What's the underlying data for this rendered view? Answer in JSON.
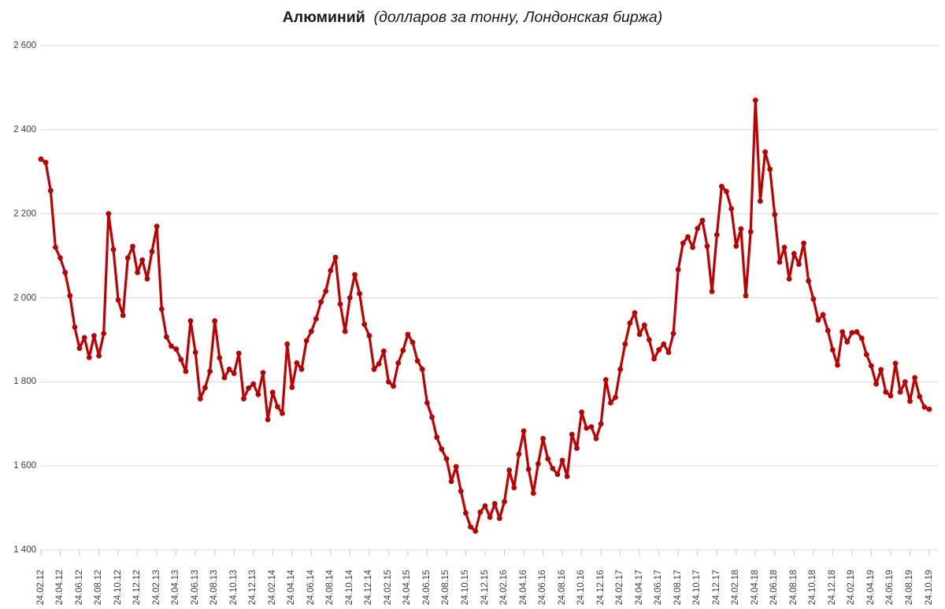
{
  "title": {
    "main": "Алюминий",
    "subtitle": "(долларов за тонну, Лондонская биржа)"
  },
  "colors": {
    "line": "#C00000",
    "marker": "#B40404",
    "gridline": "#D9D9D9",
    "tick": "#C6C6C6",
    "axis_text": "#3F3F3F",
    "title_text": "#1A1A1A",
    "background": "#FFFFFF"
  },
  "chart_data": {
    "type": "line",
    "title": "Алюминий",
    "subtitle": "(долларов за тонну, Лондонская биржа)",
    "series_name": "Алюминий, долларов за тонну",
    "legend": "none",
    "grid": "horizontal",
    "ylim": [
      1400,
      2600
    ],
    "y_ticks": [
      2600,
      2400,
      2200,
      2000,
      1800,
      1600,
      1400
    ],
    "y_tick_labels": [
      "2 600",
      "2 400",
      "2 200",
      "2 000",
      "1 800",
      "1 600",
      "1 400"
    ],
    "x_tick_labels": [
      "24.02.12",
      "24.04.12",
      "24.06.12",
      "24.08.12",
      "24.10.12",
      "24.12.12",
      "24.02.13",
      "24.04.13",
      "24.06.13",
      "24.08.13",
      "24.10.13",
      "24.12.13",
      "24.02.14",
      "24.04.14",
      "24.06.14",
      "24.08.14",
      "24.10.14",
      "24.12.14",
      "24.02.15",
      "24.04.15",
      "24.06.15",
      "24.08.15",
      "24.10.15",
      "24.12.15",
      "24.02.16",
      "24.04.16",
      "24.06.16",
      "24.08.16",
      "24.10.16",
      "24.12.16",
      "24.02.17",
      "24.04.17",
      "24.06.17",
      "24.08.17",
      "24.10.17",
      "24.12.17",
      "24.02.18",
      "24.04.18",
      "24.06.18",
      "24.08.18",
      "24.10.18",
      "24.12.18",
      "24.02.19",
      "24.04.19",
      "24.06.19",
      "24.08.19",
      "24.10.19"
    ],
    "values": [
      2330,
      2322,
      2255,
      2120,
      2095,
      2060,
      2005,
      1930,
      1880,
      1905,
      1858,
      1910,
      1862,
      1915,
      2200,
      2115,
      1995,
      1958,
      2095,
      2122,
      2060,
      2090,
      2045,
      2110,
      2170,
      1973,
      1907,
      1885,
      1878,
      1853,
      1825,
      1945,
      1870,
      1760,
      1786,
      1825,
      1945,
      1857,
      1810,
      1830,
      1820,
      1868,
      1760,
      1785,
      1795,
      1770,
      1822,
      1710,
      1775,
      1741,
      1725,
      1890,
      1787,
      1845,
      1830,
      1898,
      1920,
      1950,
      1990,
      2016,
      2065,
      2096,
      1985,
      1920,
      2000,
      2055,
      2010,
      1937,
      1910,
      1830,
      1843,
      1873,
      1800,
      1790,
      1845,
      1875,
      1913,
      1894,
      1850,
      1830,
      1750,
      1716,
      1668,
      1640,
      1617,
      1563,
      1598,
      1540,
      1488,
      1455,
      1445,
      1490,
      1505,
      1478,
      1510,
      1475,
      1515,
      1590,
      1548,
      1628,
      1683,
      1592,
      1535,
      1605,
      1665,
      1617,
      1594,
      1580,
      1613,
      1575,
      1675,
      1642,
      1728,
      1690,
      1693,
      1665,
      1700,
      1805,
      1750,
      1763,
      1830,
      1890,
      1940,
      1964,
      1913,
      1935,
      1900,
      1855,
      1876,
      1890,
      1870,
      1915,
      2067,
      2130,
      2145,
      2120,
      2165,
      2184,
      2123,
      2015,
      2150,
      2265,
      2253,
      2212,
      2123,
      2164,
      2005,
      2157,
      2470,
      2230,
      2347,
      2306,
      2198,
      2085,
      2120,
      2045,
      2105,
      2080,
      2130,
      2040,
      1997,
      1947,
      1960,
      1922,
      1876,
      1840,
      1919,
      1895,
      1917,
      1919,
      1904,
      1865,
      1838,
      1795,
      1829,
      1776,
      1767,
      1844,
      1776,
      1800,
      1754,
      1810,
      1765,
      1740,
      1735
    ]
  }
}
